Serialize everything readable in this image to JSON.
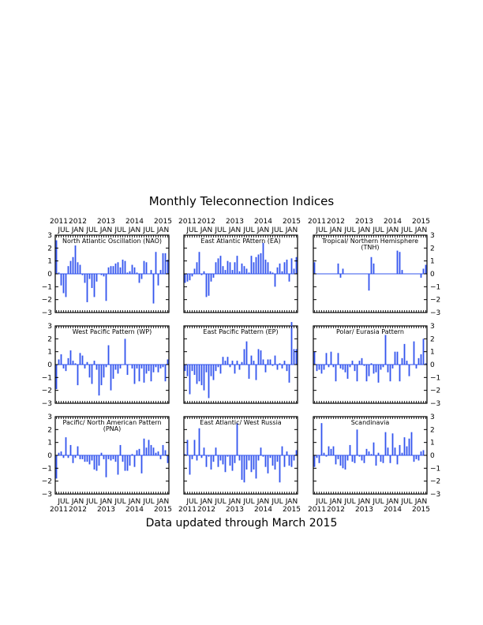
{
  "figure": {
    "title": "Monthly Teleconnection Indices",
    "footer": "Data updated through March 2015"
  },
  "colors": {
    "bar": "#3355ee",
    "axis": "#000000"
  },
  "axes": {
    "y_range": [
      -3,
      3
    ],
    "y_ticks": [
      "3",
      "2",
      "1",
      "0",
      "−1",
      "−2",
      "−3"
    ],
    "month_labels": [
      "JUL",
      "JAN",
      "JUL",
      "JAN",
      "JUL",
      "JAN",
      "JUL",
      "JAN"
    ],
    "year_labels": [
      "2011",
      "2012",
      "2013",
      "2014",
      "2015"
    ]
  },
  "chart_data": [
    {
      "type": "bar",
      "title": "North Atlantic Oscillation (NAO)",
      "x_start": "2011-04",
      "x_end": "2015-03",
      "ylim": [
        -3,
        3
      ],
      "values": [
        2.6,
        0.1,
        -0.9,
        -1.5,
        -1.8,
        0.6,
        1.0,
        1.3,
        2.2,
        0.9,
        0.7,
        -0.1,
        -0.7,
        -2.2,
        -0.4,
        -1.1,
        -1.8,
        -0.6,
        0.0,
        -0.1,
        -0.2,
        -2.1,
        0.5,
        0.6,
        0.6,
        0.8,
        0.9,
        0.5,
        1.1,
        1.0,
        0.1,
        0.2,
        0.7,
        0.5,
        0.1,
        -0.7,
        -0.4,
        1.0,
        0.9,
        0.0,
        0.3,
        -2.3,
        1.7,
        -0.9,
        0.3,
        1.6,
        1.6,
        1.1
      ]
    },
    {
      "type": "bar",
      "title": "East Atlantic PAttern (EA)",
      "x_start": "2011-04",
      "x_end": "2015-03",
      "ylim": [
        -3,
        3
      ],
      "values": [
        -0.7,
        -0.6,
        -0.5,
        -0.2,
        0.4,
        0.9,
        1.7,
        -0.1,
        0.2,
        -1.8,
        -1.7,
        -0.6,
        -0.3,
        0.9,
        1.2,
        1.4,
        0.6,
        0.3,
        1.0,
        0.9,
        0.3,
        0.9,
        1.4,
        0.2,
        0.8,
        0.6,
        0.4,
        0.1,
        1.4,
        0.9,
        1.3,
        1.5,
        1.6,
        2.4,
        1.1,
        0.9,
        0.2,
        0.1,
        -1.0,
        0.5,
        0.8,
        0.2,
        0.9,
        1.1,
        -0.6,
        1.2,
        0.4,
        1.3
      ]
    },
    {
      "type": "bar",
      "title": "Tropical/ Northern Hemisphere (TNH)",
      "x_start": "2011-04",
      "x_end": "2015-03",
      "ylim": [
        -3,
        3
      ],
      "values": [
        0.9,
        0,
        0,
        0,
        0,
        0,
        0,
        0,
        0,
        0,
        0.8,
        -0.3,
        0.4,
        0,
        0,
        0,
        0,
        0,
        0,
        0,
        0,
        0,
        0,
        -1.3,
        1.3,
        0.8,
        0,
        0,
        0,
        0,
        0,
        0,
        0,
        0,
        0,
        1.8,
        1.7,
        0.3,
        0,
        0,
        0,
        0,
        0,
        0,
        0,
        -0.3,
        0.4,
        0.7
      ]
    },
    {
      "type": "bar",
      "title": "West Pacific Pattern (WP)",
      "x_start": "2011-04",
      "x_end": "2015-03",
      "ylim": [
        -3,
        3
      ],
      "values": [
        -1.9,
        0.4,
        0.8,
        -0.3,
        -0.5,
        0.5,
        1.1,
        0.3,
        0.1,
        -1.6,
        0.9,
        0.7,
        -0.3,
        0.2,
        -1.0,
        -1.5,
        0.3,
        -0.4,
        -2.4,
        -1.6,
        -1.0,
        -0.2,
        1.5,
        -2.0,
        -1.1,
        -0.4,
        -0.7,
        -0.3,
        0.0,
        2.0,
        -0.8,
        0.0,
        -0.3,
        -1.5,
        -0.3,
        -1.3,
        -0.3,
        -1.4,
        -0.7,
        -0.5,
        -1.3,
        -0.6,
        -0.2,
        -0.6,
        -0.3,
        -0.2,
        -1.3,
        0.4
      ]
    },
    {
      "type": "bar",
      "title": "East Pacific Pattern (EP)",
      "x_start": "2011-04",
      "x_end": "2015-03",
      "ylim": [
        -3,
        3
      ],
      "values": [
        -0.5,
        -0.9,
        -2.3,
        -0.5,
        -0.8,
        -1.5,
        -1.3,
        -1.6,
        -2.0,
        -0.6,
        -2.6,
        -0.9,
        -1.2,
        -0.5,
        -0.2,
        -0.7,
        0.6,
        0.3,
        0.6,
        -0.2,
        0.3,
        -0.7,
        0.3,
        -0.4,
        0.2,
        1.2,
        1.8,
        -1.1,
        0.7,
        0.3,
        -1.2,
        1.2,
        1.1,
        0.4,
        -0.6,
        0.4,
        0.4,
        -0.1,
        0.7,
        -0.4,
        0.1,
        -0.3,
        0.3,
        -0.5,
        -1.4,
        3.3,
        1.2,
        1.2
      ]
    },
    {
      "type": "bar",
      "title": "Polar/ Eurasia Pattern",
      "x_start": "2011-04",
      "x_end": "2015-03",
      "ylim": [
        -3,
        3
      ],
      "values": [
        1.0,
        -0.5,
        -0.4,
        -0.7,
        -0.4,
        0.9,
        -0.2,
        1.0,
        -0.2,
        -1.3,
        0.9,
        -0.3,
        -0.4,
        -0.6,
        -1.1,
        -0.2,
        0.3,
        -0.5,
        -1.3,
        0.3,
        0.5,
        -0.1,
        -1.3,
        -0.9,
        0.1,
        -0.7,
        -0.6,
        -1.4,
        -0.4,
        -0.2,
        2.3,
        -0.6,
        -1.3,
        -0.3,
        1.0,
        1.0,
        -1.3,
        0.5,
        1.6,
        0.3,
        -0.9,
        0.0,
        1.8,
        -0.3,
        0.5,
        0.8,
        2.0,
        0.1
      ]
    },
    {
      "type": "bar",
      "title": "Pacific/ North American Pattern (PNA)",
      "x_start": "2011-04",
      "x_end": "2015-03",
      "ylim": [
        -3,
        3
      ],
      "values": [
        -1.8,
        0.2,
        0.3,
        -0.2,
        1.4,
        -0.2,
        0.8,
        -0.6,
        -0.2,
        0.7,
        -0.3,
        -0.3,
        -0.5,
        -0.5,
        -0.7,
        -0.4,
        -1.1,
        -1.2,
        -0.8,
        0.2,
        -0.3,
        -1.7,
        -0.3,
        -0.4,
        -0.3,
        -0.5,
        -1.5,
        0.8,
        -0.5,
        -1.2,
        -1.2,
        -0.8,
        0.1,
        -0.9,
        0.4,
        0.5,
        -1.4,
        1.3,
        0.6,
        1.2,
        0.8,
        0.6,
        0.2,
        0.3,
        -0.3,
        0.8,
        0.4,
        -0.6
      ]
    },
    {
      "type": "bar",
      "title": "East Atlantic/ West Russia",
      "x_start": "2011-04",
      "x_end": "2015-03",
      "ylim": [
        -3,
        3
      ],
      "values": [
        0.1,
        1.2,
        -1.5,
        -0.3,
        1.2,
        -0.4,
        2.1,
        -0.2,
        0.6,
        -0.9,
        -0.1,
        -1.1,
        -0.5,
        0.6,
        -0.9,
        -0.4,
        -0.7,
        -1.3,
        -0.1,
        -0.8,
        -1.2,
        -0.6,
        2.5,
        -0.4,
        -1.9,
        -2.1,
        -1.1,
        -0.4,
        -1.3,
        -1.1,
        -1.8,
        -0.4,
        0.6,
        -0.1,
        -0.9,
        -1.4,
        -0.2,
        -0.8,
        -1.1,
        -0.5,
        -2.1,
        0.7,
        -0.9,
        0.3,
        -0.8,
        -0.9,
        -0.4,
        0.4
      ]
    },
    {
      "type": "bar",
      "title": "Scandinavia",
      "x_start": "2011-04",
      "x_end": "2015-03",
      "ylim": [
        -3,
        3
      ],
      "values": [
        -0.9,
        -0.2,
        -0.6,
        2.5,
        0.2,
        -0.1,
        0.7,
        0.5,
        0.7,
        -0.7,
        -0.3,
        -0.8,
        -1.0,
        -1.1,
        -0.4,
        0.8,
        -0.5,
        -0.6,
        2.0,
        -0.1,
        -0.4,
        -0.6,
        0.5,
        0.3,
        0.1,
        1.0,
        -0.8,
        0.2,
        -0.5,
        -0.6,
        1.8,
        0.6,
        -0.6,
        1.7,
        0.6,
        -0.7,
        0.8,
        0.2,
        1.4,
        0.7,
        1.3,
        1.8,
        -0.5,
        -0.3,
        -0.4,
        0.3,
        0.4,
        0.0
      ]
    }
  ]
}
